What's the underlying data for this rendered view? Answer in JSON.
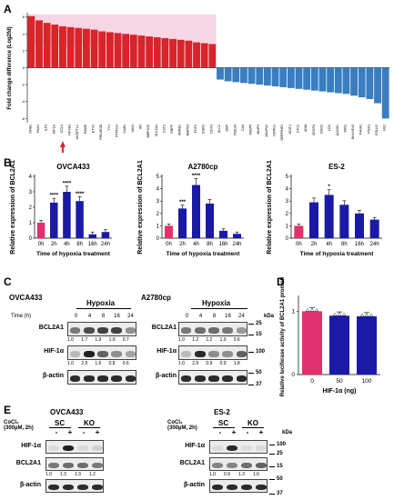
{
  "panels": {
    "a": "A",
    "b": "B",
    "c": "C",
    "d": "D",
    "e": "E"
  },
  "panel_a": {
    "ylabel": "Fold change difference (Log2fd)",
    "genes": [
      "GNB1",
      "PAK2",
      "ILF3",
      "KIF1A",
      "CCL3",
      "NFYB3",
      "ANGPTL4",
      "PAWB",
      "ETV1",
      "PRKAR2B",
      "YY1",
      "PTPN14",
      "GAB1",
      "VAV3",
      "AR",
      "MRPS15",
      "SLC2A1",
      "CST3",
      "GRPF",
      "ARRB1",
      "MAPK9",
      "FGF1",
      "EGR1",
      "DDX3",
      "KLC2",
      "DBP",
      "PDE2A",
      "CA9",
      "FKBP5",
      "BNIP3",
      "AKAP12",
      "NDRG1",
      "SERPINE1",
      "DDIT4",
      "STC2",
      "ADM",
      "VEGFA",
      "ENO2",
      "LOX",
      "ALDOC",
      "MXI1",
      "BHLHE40",
      "P4HA1",
      "PGK1",
      "EGLN3",
      "HK2"
    ],
    "values": [
      6.1,
      5.6,
      5.3,
      5.1,
      4.9,
      4.8,
      4.7,
      4.6,
      4.5,
      4.3,
      4.2,
      4.1,
      4.0,
      3.9,
      3.8,
      3.7,
      3.6,
      3.5,
      3.4,
      3.3,
      3.2,
      3.0,
      2.9,
      2.8,
      -1.4,
      -1.6,
      -1.7,
      -1.8,
      -1.9,
      -2.0,
      -2.1,
      -2.2,
      -2.3,
      -2.4,
      -2.5,
      -2.6,
      -2.7,
      -2.8,
      -2.9,
      -3.0,
      -3.1,
      -3.3,
      -3.5,
      -3.7,
      -4.2,
      -6.0
    ],
    "yticks": [
      "6",
      "4",
      "2",
      "0",
      "-2",
      "-4",
      "-6"
    ],
    "highlight": "BCL2A1"
  },
  "panel_b": {
    "charts": [
      {
        "title": "OVCA433",
        "ylabel": "Relative expression of BCL2A1",
        "xlabel": "Time of hypoxia treatment",
        "categories": [
          "0h",
          "2h",
          "4h",
          "8h",
          "16h",
          "24h"
        ],
        "values": [
          1.0,
          2.3,
          3.0,
          2.4,
          0.25,
          0.4
        ],
        "ymax": 4,
        "yticks": [
          "0",
          "1",
          "2",
          "3",
          "4"
        ],
        "sig": [
          "",
          "****",
          "****",
          "****",
          "",
          ""
        ]
      },
      {
        "title": "A2780cp",
        "ylabel": "Relative expression of BCL2A1",
        "xlabel": "Time of hypoxia treatment",
        "categories": [
          "0h",
          "2h",
          "4h",
          "8h",
          "16h",
          "24h"
        ],
        "values": [
          1.0,
          2.4,
          4.3,
          2.8,
          0.6,
          0.35
        ],
        "ymax": 5,
        "yticks": [
          "0",
          "1",
          "2",
          "3",
          "4",
          "5"
        ],
        "sig": [
          "",
          "***",
          "****",
          "",
          "",
          ""
        ]
      },
      {
        "title": "ES-2",
        "ylabel": "Relative expression of BCL2A1",
        "xlabel": "Time of hypoxia treatment",
        "categories": [
          "0h",
          "2h",
          "4h",
          "8h",
          "16h",
          "24h"
        ],
        "values": [
          1.0,
          2.9,
          3.5,
          2.7,
          2.0,
          1.5
        ],
        "ymax": 5,
        "yticks": [
          "0",
          "1",
          "2",
          "3",
          "4",
          "5"
        ],
        "sig": [
          "",
          "",
          "*",
          "",
          "",
          ""
        ]
      }
    ]
  },
  "panel_c": {
    "left": {
      "cell": "OVCA433",
      "condition": "Hypoxia",
      "time_label": "Time (h)",
      "times": [
        "0",
        "4",
        "8",
        "16",
        "24"
      ],
      "rows": [
        {
          "label": "BCL2A1",
          "quant": [
            "1.0",
            "1.7",
            "1.9",
            "1.9",
            "0.7"
          ]
        },
        {
          "label": "HIF-1α",
          "quant": [
            "1.0",
            "2.9",
            "1.6",
            "0.8",
            "0.6"
          ]
        },
        {
          "label": "β-actin",
          "quant": []
        }
      ]
    },
    "right": {
      "cell": "A2780cp",
      "condition": "Hypoxia",
      "times": [
        "0",
        "4",
        "8",
        "16",
        "24"
      ],
      "rows": [
        {
          "label": "BCL2A1",
          "quant": [
            "1.0",
            "1.2",
            "1.2",
            "1.0",
            "0.6"
          ]
        },
        {
          "label": "HIF-1α",
          "quant": [
            "1.0",
            "2.9",
            "0.9",
            "0.9",
            "1.8"
          ]
        },
        {
          "label": "β-actin",
          "quant": []
        }
      ],
      "kda": "kDa",
      "markers": [
        "25",
        "15",
        "100",
        "50",
        "37"
      ]
    }
  },
  "panel_d": {
    "ylabel": "Relative luciferase activity of BCL2A1 promoter",
    "xlabel": "HIF-1α (ng)",
    "categories": [
      "0",
      "50",
      "100"
    ],
    "values": [
      1.0,
      0.93,
      0.92
    ],
    "yticks": [
      "0",
      "1"
    ],
    "ymax": 1.25
  },
  "panel_e": {
    "left": {
      "cell": "OVCA433",
      "treatment": "CoCl₂ (300µM, 2h)",
      "groups": [
        "SC",
        "KO"
      ],
      "signs": [
        "-",
        "+",
        "-",
        "+"
      ],
      "rows": [
        {
          "label": "HIF-1α",
          "quant": []
        },
        {
          "label": "BCL2A1",
          "quant": [
            "1.0",
            "1.3",
            "1.3",
            "1.2"
          ]
        },
        {
          "label": "β-actin",
          "quant": []
        }
      ]
    },
    "right": {
      "cell": "ES-2",
      "treatment": "CoCl₂ (300µM, 2h)",
      "groups": [
        "SC",
        "KO"
      ],
      "signs": [
        "-",
        "+",
        "-",
        "+"
      ],
      "kda": "kDa",
      "rows": [
        {
          "label": "HIF-1α",
          "quant": []
        },
        {
          "label": "BCL2A1",
          "quant": [
            "1.0",
            "0.9",
            "1.3",
            "1.6"
          ]
        },
        {
          "label": "β-actin",
          "quant": []
        }
      ],
      "markers": [
        "100",
        "25",
        "15",
        "50",
        "37"
      ]
    }
  },
  "colors": {
    "up": "#d8242a",
    "down": "#3a7dc0",
    "bar_blue": "#1a1aa6",
    "bar_pink": "#e0316e"
  }
}
